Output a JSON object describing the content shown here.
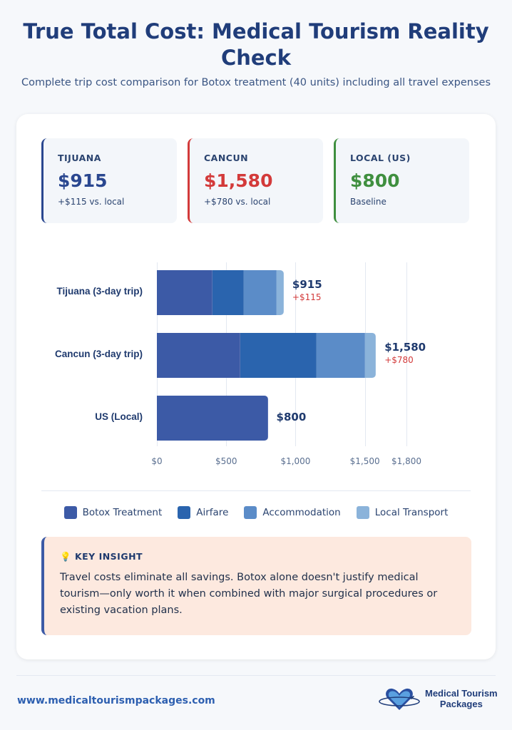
{
  "header": {
    "title": "True Total Cost: Medical Tourism Reality Check",
    "subtitle": "Complete trip cost comparison for Botox treatment (40 units) including all travel expenses"
  },
  "stats": [
    {
      "label": "TIJUANA",
      "value": "$915",
      "note": "+$115 vs. local",
      "color": "#2a4790"
    },
    {
      "label": "CANCUN",
      "value": "$1,580",
      "note": "+$780 vs. local",
      "color": "#d33a3a"
    },
    {
      "label": "LOCAL (US)",
      "value": "$800",
      "note": "Baseline",
      "color": "#3f8f3f"
    }
  ],
  "chart_data": {
    "type": "bar",
    "orientation": "horizontal",
    "stacked": true,
    "categories": [
      "Tijuana (3-day trip)",
      "Cancun (3-day trip)",
      "US (Local)"
    ],
    "series": [
      {
        "name": "Botox Treatment",
        "color": "#3c5aa6",
        "values": [
          400,
          600,
          800
        ]
      },
      {
        "name": "Airfare",
        "color": "#2a64ae",
        "values": [
          225,
          550,
          0
        ]
      },
      {
        "name": "Accommodation",
        "color": "#5b8cc8",
        "values": [
          240,
          350,
          0
        ]
      },
      {
        "name": "Local Transport",
        "color": "#8bb3da",
        "values": [
          50,
          80,
          0
        ]
      }
    ],
    "totals": [
      "$915",
      "$1,580",
      "$800"
    ],
    "differences": [
      "+$115",
      "+$780",
      ""
    ],
    "xlim": [
      0,
      1800
    ],
    "xticks": [
      0,
      500,
      1000,
      1500,
      1800
    ],
    "xtick_labels": [
      "$0",
      "$500",
      "$1,000",
      "$1,500",
      "$1,800"
    ],
    "grid": true,
    "legend": "bottom"
  },
  "insight": {
    "icon": "lightbulb-icon",
    "title": "KEY INSIGHT",
    "body": "Travel costs eliminate all savings. Botox alone doesn't justify medical tourism—only worth it when combined with major surgical procedures or existing vacation plans."
  },
  "footer": {
    "url": "www.medicaltourismpackages.com",
    "logo_text": "Medical Tourism Packages"
  }
}
